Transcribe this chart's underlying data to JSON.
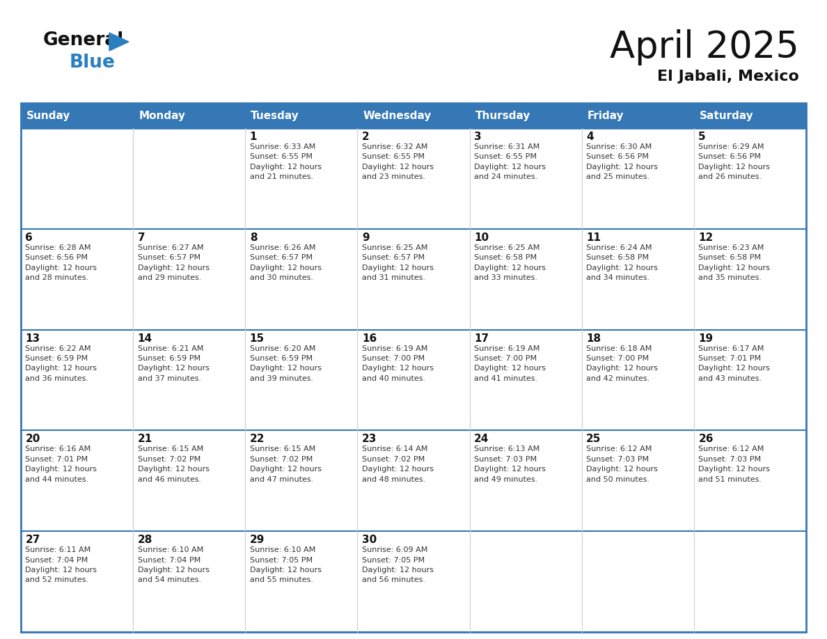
{
  "title": "April 2025",
  "subtitle": "El Jabali, Mexico",
  "header_bg_color": "#3578b5",
  "header_text_color": "#ffffff",
  "cell_bg_color": "#ffffff",
  "border_color": "#3578b5",
  "row_line_color": "#3578b5",
  "col_line_color": "#cccccc",
  "days_of_week": [
    "Sunday",
    "Monday",
    "Tuesday",
    "Wednesday",
    "Thursday",
    "Friday",
    "Saturday"
  ],
  "weeks": [
    [
      {
        "day": "",
        "info": ""
      },
      {
        "day": "",
        "info": ""
      },
      {
        "day": "1",
        "info": "Sunrise: 6:33 AM\nSunset: 6:55 PM\nDaylight: 12 hours\nand 21 minutes."
      },
      {
        "day": "2",
        "info": "Sunrise: 6:32 AM\nSunset: 6:55 PM\nDaylight: 12 hours\nand 23 minutes."
      },
      {
        "day": "3",
        "info": "Sunrise: 6:31 AM\nSunset: 6:55 PM\nDaylight: 12 hours\nand 24 minutes."
      },
      {
        "day": "4",
        "info": "Sunrise: 6:30 AM\nSunset: 6:56 PM\nDaylight: 12 hours\nand 25 minutes."
      },
      {
        "day": "5",
        "info": "Sunrise: 6:29 AM\nSunset: 6:56 PM\nDaylight: 12 hours\nand 26 minutes."
      }
    ],
    [
      {
        "day": "6",
        "info": "Sunrise: 6:28 AM\nSunset: 6:56 PM\nDaylight: 12 hours\nand 28 minutes."
      },
      {
        "day": "7",
        "info": "Sunrise: 6:27 AM\nSunset: 6:57 PM\nDaylight: 12 hours\nand 29 minutes."
      },
      {
        "day": "8",
        "info": "Sunrise: 6:26 AM\nSunset: 6:57 PM\nDaylight: 12 hours\nand 30 minutes."
      },
      {
        "day": "9",
        "info": "Sunrise: 6:25 AM\nSunset: 6:57 PM\nDaylight: 12 hours\nand 31 minutes."
      },
      {
        "day": "10",
        "info": "Sunrise: 6:25 AM\nSunset: 6:58 PM\nDaylight: 12 hours\nand 33 minutes."
      },
      {
        "day": "11",
        "info": "Sunrise: 6:24 AM\nSunset: 6:58 PM\nDaylight: 12 hours\nand 34 minutes."
      },
      {
        "day": "12",
        "info": "Sunrise: 6:23 AM\nSunset: 6:58 PM\nDaylight: 12 hours\nand 35 minutes."
      }
    ],
    [
      {
        "day": "13",
        "info": "Sunrise: 6:22 AM\nSunset: 6:59 PM\nDaylight: 12 hours\nand 36 minutes."
      },
      {
        "day": "14",
        "info": "Sunrise: 6:21 AM\nSunset: 6:59 PM\nDaylight: 12 hours\nand 37 minutes."
      },
      {
        "day": "15",
        "info": "Sunrise: 6:20 AM\nSunset: 6:59 PM\nDaylight: 12 hours\nand 39 minutes."
      },
      {
        "day": "16",
        "info": "Sunrise: 6:19 AM\nSunset: 7:00 PM\nDaylight: 12 hours\nand 40 minutes."
      },
      {
        "day": "17",
        "info": "Sunrise: 6:19 AM\nSunset: 7:00 PM\nDaylight: 12 hours\nand 41 minutes."
      },
      {
        "day": "18",
        "info": "Sunrise: 6:18 AM\nSunset: 7:00 PM\nDaylight: 12 hours\nand 42 minutes."
      },
      {
        "day": "19",
        "info": "Sunrise: 6:17 AM\nSunset: 7:01 PM\nDaylight: 12 hours\nand 43 minutes."
      }
    ],
    [
      {
        "day": "20",
        "info": "Sunrise: 6:16 AM\nSunset: 7:01 PM\nDaylight: 12 hours\nand 44 minutes."
      },
      {
        "day": "21",
        "info": "Sunrise: 6:15 AM\nSunset: 7:02 PM\nDaylight: 12 hours\nand 46 minutes."
      },
      {
        "day": "22",
        "info": "Sunrise: 6:15 AM\nSunset: 7:02 PM\nDaylight: 12 hours\nand 47 minutes."
      },
      {
        "day": "23",
        "info": "Sunrise: 6:14 AM\nSunset: 7:02 PM\nDaylight: 12 hours\nand 48 minutes."
      },
      {
        "day": "24",
        "info": "Sunrise: 6:13 AM\nSunset: 7:03 PM\nDaylight: 12 hours\nand 49 minutes."
      },
      {
        "day": "25",
        "info": "Sunrise: 6:12 AM\nSunset: 7:03 PM\nDaylight: 12 hours\nand 50 minutes."
      },
      {
        "day": "26",
        "info": "Sunrise: 6:12 AM\nSunset: 7:03 PM\nDaylight: 12 hours\nand 51 minutes."
      }
    ],
    [
      {
        "day": "27",
        "info": "Sunrise: 6:11 AM\nSunset: 7:04 PM\nDaylight: 12 hours\nand 52 minutes."
      },
      {
        "day": "28",
        "info": "Sunrise: 6:10 AM\nSunset: 7:04 PM\nDaylight: 12 hours\nand 54 minutes."
      },
      {
        "day": "29",
        "info": "Sunrise: 6:10 AM\nSunset: 7:05 PM\nDaylight: 12 hours\nand 55 minutes."
      },
      {
        "day": "30",
        "info": "Sunrise: 6:09 AM\nSunset: 7:05 PM\nDaylight: 12 hours\nand 56 minutes."
      },
      {
        "day": "",
        "info": ""
      },
      {
        "day": "",
        "info": ""
      },
      {
        "day": "",
        "info": ""
      }
    ]
  ],
  "logo_general_color": "#111111",
  "logo_blue_color": "#2a7fc1",
  "logo_triangle_color": "#2a7fc1",
  "title_fontsize": 38,
  "subtitle_fontsize": 16,
  "day_number_fontsize": 11,
  "info_fontsize": 8,
  "header_fontsize": 11
}
